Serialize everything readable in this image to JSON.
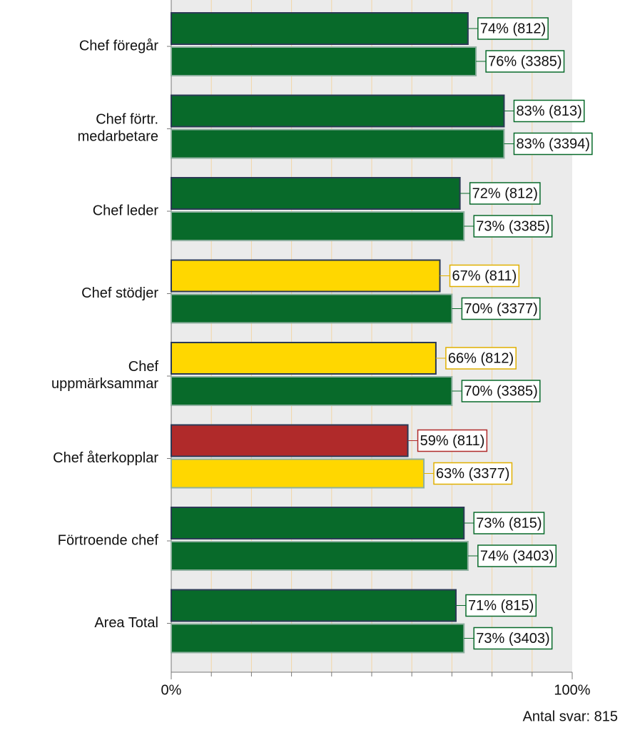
{
  "chart_data": {
    "type": "hbar",
    "categories": [
      "Chef föregår",
      "Chef förtr.\nmedarbetare",
      "Chef leder",
      "Chef stödjer",
      "Chef\nuppmärksammar",
      "Chef återkopplar",
      "Förtroende chef",
      "Area Total"
    ],
    "series": [
      {
        "values": [
          74,
          83,
          72,
          67,
          66,
          59,
          73,
          71
        ],
        "value_labels": [
          "74% (812)",
          "83% (813)",
          "72% (812)",
          "67% (811)",
          "66% (812)",
          "59% (811)",
          "73% (815)",
          "71% (815)"
        ],
        "colors": [
          "#086a2a",
          "#086a2a",
          "#086a2a",
          "#ffd700",
          "#ffd700",
          "#b02a2a",
          "#086a2a",
          "#086a2a"
        ],
        "border": "#2b3a55"
      },
      {
        "values": [
          76,
          83,
          73,
          70,
          70,
          63,
          74,
          73
        ],
        "value_labels": [
          "76% (3385)",
          "83% (3394)",
          "73% (3385)",
          "70% (3377)",
          "70% (3385)",
          "63% (3377)",
          "74% (3403)",
          "73% (3403)"
        ],
        "colors": [
          "#086a2a",
          "#086a2a",
          "#086a2a",
          "#086a2a",
          "#086a2a",
          "#ffd700",
          "#086a2a",
          "#086a2a"
        ],
        "border": "#8fb0a0"
      }
    ],
    "xlim": [
      0,
      100
    ],
    "xticks": [
      {
        "value": 0,
        "label": "0%"
      },
      {
        "value": 100,
        "label": "100%"
      }
    ],
    "xgrid": [
      10,
      20,
      30,
      40,
      50,
      60,
      70,
      80,
      90
    ],
    "footer": "Antal svar: 815"
  }
}
